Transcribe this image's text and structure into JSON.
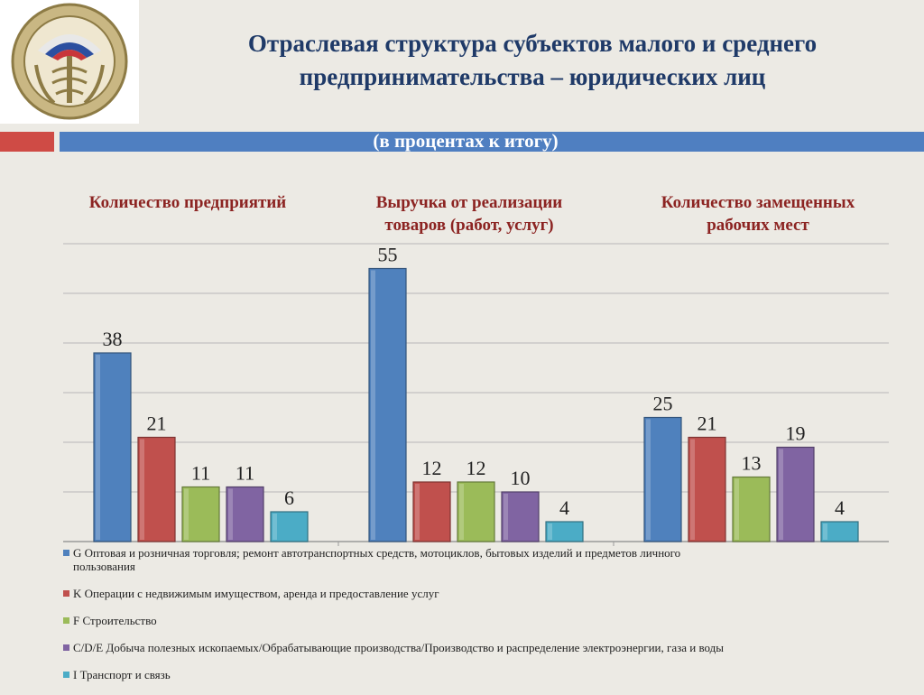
{
  "header": {
    "title_line1": "Отраслевая структура субъектов малого и среднего",
    "title_line2": "предпринимательства – юридических лиц",
    "subtitle": "(в процентах к итогу)"
  },
  "colors": {
    "title": "#1f3a68",
    "group_headers": "#8c2422",
    "band_red": "#cf4b45",
    "band_blue": "#4f7fc1",
    "background": "#eceae4"
  },
  "chart_data": {
    "type": "bar",
    "categories": [
      "Количество предприятий",
      "Выручка от реализации товаров (работ, услуг)",
      "Количество замещенных рабочих мест"
    ],
    "category_lines": [
      [
        "Количество предприятий"
      ],
      [
        "Выручка от реализации",
        "товаров (работ, услуг)"
      ],
      [
        "Количество замещенных",
        "рабочих мест"
      ]
    ],
    "series": [
      {
        "name": "G Оптовая и розничная торговля; ремонт автотранспортных средств, мотоциклов, бытовых изделий и предметов личного пользования",
        "color": "#4f81bd",
        "values": [
          38,
          55,
          25
        ]
      },
      {
        "name": "K Операции с недвижимым имуществом, аренда и предоставление услуг",
        "color": "#c0504d",
        "values": [
          21,
          12,
          21
        ]
      },
      {
        "name": "F Строительство",
        "color": "#9bbb59",
        "values": [
          11,
          12,
          13
        ]
      },
      {
        "name": "C/D/E Добыча полезных ископаемых/Обрабатывающие производства/Производство и распределение электроэнергии, газа и воды",
        "color": "#8064a2",
        "values": [
          11,
          10,
          19
        ]
      },
      {
        "name": "I Транспорт и связь",
        "color": "#4bacc6",
        "values": [
          6,
          4,
          4
        ]
      }
    ],
    "ylim": [
      0,
      60
    ],
    "gridlines": true,
    "legend_position": "bottom",
    "data_labels": true
  },
  "legend_lines": [
    [
      "G Оптовая и розничная торговля; ремонт автотранспортных средств, мотоциклов, бытовых изделий и предметов личного",
      "пользования"
    ],
    [
      "K Операции с недвижимым имуществом, аренда и предоставление услуг"
    ],
    [
      "F Строительство"
    ],
    [
      "C/D/E Добыча полезных ископаемых/Обрабатывающие производства/Производство и распределение электроэнергии, газа и воды"
    ],
    [
      "I Транспорт и связь"
    ]
  ]
}
